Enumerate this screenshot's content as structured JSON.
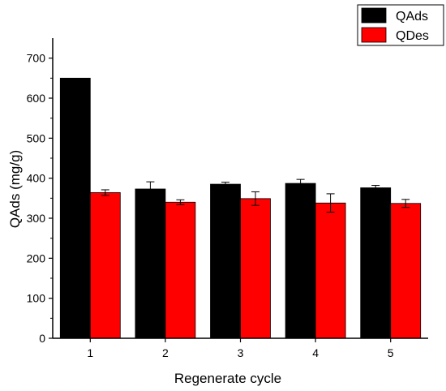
{
  "chart_data": {
    "type": "bar",
    "categories": [
      "1",
      "2",
      "3",
      "4",
      "5"
    ],
    "series": [
      {
        "name": "QAds",
        "values": [
          650,
          373,
          385,
          387,
          376
        ],
        "errors": [
          0,
          18,
          5,
          10,
          6
        ],
        "color": "#000000"
      },
      {
        "name": "QDes",
        "values": [
          364,
          340,
          349,
          338,
          337
        ],
        "errors": [
          7,
          6,
          17,
          23,
          10
        ],
        "color": "#ff0000"
      }
    ],
    "title": "",
    "xlabel": "Regenerate cycle",
    "ylabel": "QAds (mg/g)",
    "ylim": [
      0,
      750
    ],
    "yticks": [
      0,
      100,
      200,
      300,
      400,
      500,
      600,
      700
    ],
    "grid": false,
    "legend": "top-right"
  }
}
